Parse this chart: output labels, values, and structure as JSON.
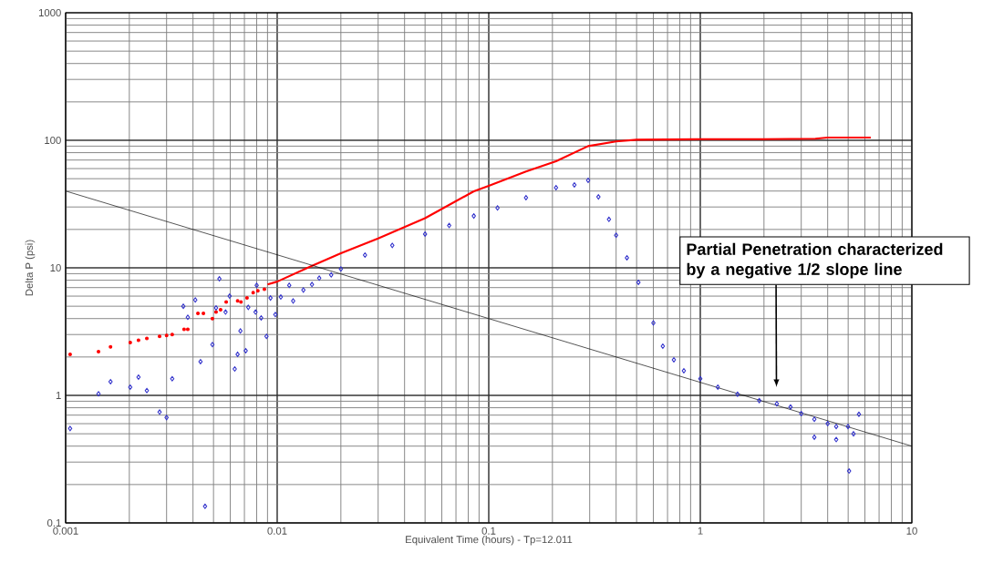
{
  "chart_data": {
    "type": "scatter",
    "xlabel": "Equivalent Time (hours) - Tp=12.011",
    "ylabel": "Delta P (psi)",
    "log": "xy",
    "grid": true,
    "legend": false,
    "xlim": [
      0.001,
      10
    ],
    "ylim": [
      0.1,
      1000
    ],
    "xticks": [
      0.001,
      0.01,
      0.1,
      1,
      10
    ],
    "yticks": [
      0.1,
      1,
      10,
      100,
      1000
    ],
    "annotations": [
      "Partial Penetration characterized by a negative 1/2 slope line"
    ],
    "series": [
      {
        "marker": "circle",
        "color": "#ff0000",
        "x": [
          0.00105,
          0.00143,
          0.00163,
          0.00202,
          0.00221,
          0.00242,
          0.00278,
          0.003,
          0.00319,
          0.00363,
          0.00378,
          0.00422,
          0.00448,
          0.00494,
          0.00514,
          0.0054,
          0.00574,
          0.0065,
          0.00674,
          0.0072,
          0.0077,
          0.0081,
          0.0087
        ],
        "values": [
          2.1,
          2.2,
          2.4,
          2.6,
          2.7,
          2.8,
          2.9,
          2.95,
          3.0,
          3.3,
          3.3,
          4.4,
          4.4,
          4.0,
          4.5,
          4.7,
          5.4,
          5.5,
          5.4,
          5.8,
          6.4,
          6.6,
          6.8
        ]
      },
      {
        "type": "line",
        "marker": "none",
        "color": "#ff0000",
        "x": [
          0.009,
          0.01,
          0.0143,
          0.02,
          0.03,
          0.05,
          0.085,
          0.1,
          0.15,
          0.208,
          0.295,
          0.4,
          0.5,
          1,
          2,
          3.5,
          4,
          6.4
        ],
        "values": [
          7.4,
          7.8,
          10.2,
          13,
          17,
          24.5,
          39.8,
          44,
          57,
          68.5,
          90,
          98,
          101,
          102,
          102,
          103,
          105,
          105
        ]
      },
      {
        "marker": "diamond",
        "color": "#3333cc",
        "x": [
          0.00105,
          0.00143,
          0.00163,
          0.00202,
          0.00221,
          0.00242,
          0.00278,
          0.003,
          0.00319,
          0.0036,
          0.00378,
          0.0041,
          0.00434,
          0.00456,
          0.00494,
          0.00514,
          0.00533,
          0.0057,
          0.00596,
          0.0063,
          0.0065,
          0.0067,
          0.0071,
          0.0073,
          0.0079,
          0.008,
          0.0084,
          0.0089,
          0.0093,
          0.0098,
          0.0104,
          0.0114,
          0.0119,
          0.0133,
          0.0146,
          0.0158,
          0.018,
          0.02,
          0.026,
          0.035,
          0.05,
          0.065,
          0.085,
          0.11,
          0.15,
          0.208,
          0.254,
          0.295,
          0.33,
          0.37,
          0.4,
          0.45,
          0.51,
          0.6,
          0.665,
          0.75,
          0.836,
          1.0,
          1.21,
          1.5,
          1.9,
          2.3,
          2.67,
          3.0,
          3.46,
          3.46,
          4.0,
          4.39,
          4.39,
          4.99,
          5.05,
          5.3,
          5.62
        ],
        "values": [
          0.55,
          1.03,
          1.28,
          1.16,
          1.39,
          1.09,
          0.74,
          0.67,
          1.35,
          5.0,
          4.1,
          5.6,
          1.84,
          0.135,
          2.5,
          4.85,
          8.2,
          4.5,
          6.0,
          1.61,
          2.1,
          3.2,
          2.24,
          4.9,
          4.5,
          7.3,
          4.05,
          2.9,
          5.8,
          4.3,
          5.9,
          7.3,
          5.5,
          6.7,
          7.4,
          8.3,
          8.8,
          9.8,
          12.6,
          15,
          18.4,
          21.5,
          25.5,
          29.5,
          35.5,
          42.5,
          44.7,
          48.5,
          36,
          24,
          18,
          12,
          7.7,
          3.7,
          2.43,
          1.9,
          1.56,
          1.35,
          1.16,
          1.02,
          0.91,
          0.86,
          0.81,
          0.72,
          0.65,
          0.47,
          0.6,
          0.57,
          0.45,
          0.57,
          0.255,
          0.5,
          0.71
        ]
      },
      {
        "type": "line",
        "marker": "none",
        "color": "#000000",
        "x": [
          0.001,
          10
        ],
        "values": [
          40,
          0.4
        ]
      }
    ]
  }
}
